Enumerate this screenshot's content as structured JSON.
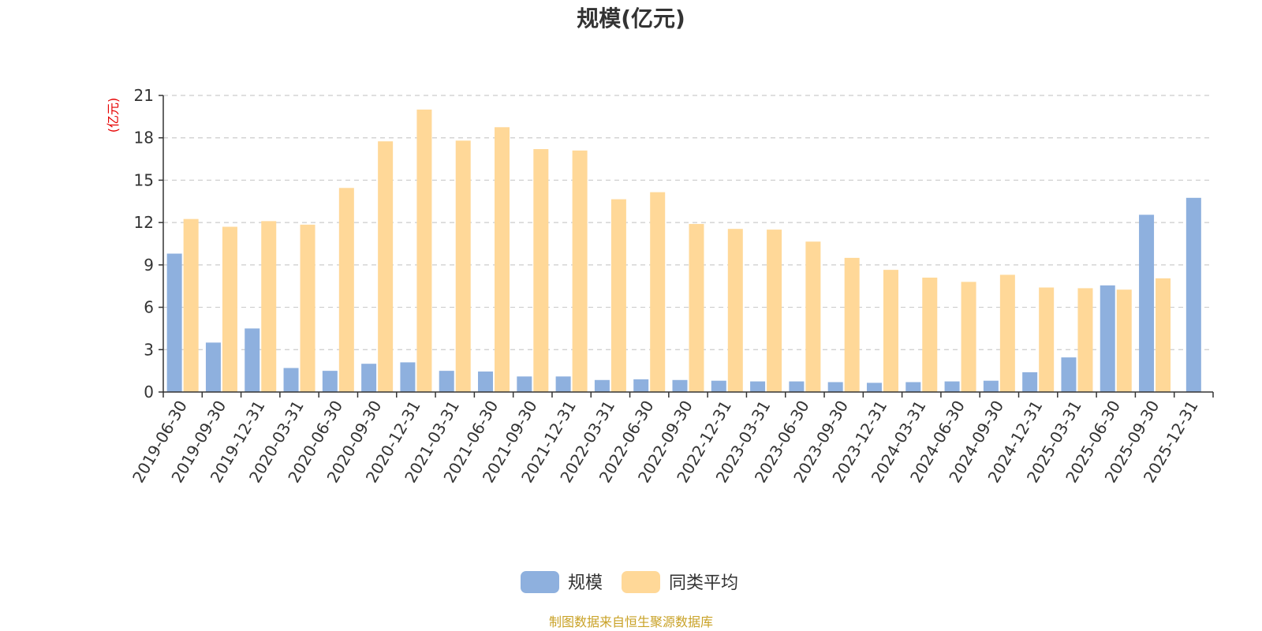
{
  "chart_data": {
    "type": "bar",
    "title": "规模(亿元)",
    "ylabel": "(亿元)",
    "ylim": [
      0,
      21
    ],
    "yticks": [
      0,
      3,
      6,
      9,
      12,
      15,
      18,
      21
    ],
    "grid": true,
    "legend_position": "bottom",
    "categories": [
      "2019-06-30",
      "2019-09-30",
      "2019-12-31",
      "2020-03-31",
      "2020-06-30",
      "2020-09-30",
      "2020-12-31",
      "2021-03-31",
      "2021-06-30",
      "2021-09-30",
      "2021-12-31",
      "2022-03-31",
      "2022-06-30",
      "2022-09-30",
      "2022-12-31",
      "2023-03-31",
      "2023-06-30",
      "2023-09-30",
      "2023-12-31",
      "2024-03-31",
      "2024-06-30",
      "2024-09-30",
      "2024-12-31",
      "2025-03-31",
      "2025-06-30",
      "2025-09-30",
      "2025-12-31"
    ],
    "series": [
      {
        "name": "规模",
        "color": "#8eb0de",
        "values": [
          9.8,
          3.5,
          4.5,
          1.7,
          1.5,
          2.0,
          2.1,
          1.5,
          1.45,
          1.1,
          1.1,
          0.85,
          0.9,
          0.85,
          0.8,
          0.75,
          0.75,
          0.7,
          0.65,
          0.7,
          0.75,
          0.8,
          1.4,
          2.45,
          7.55,
          12.55,
          13.75
        ]
      },
      {
        "name": "同类平均",
        "color": "#ffd898",
        "values": [
          12.25,
          11.7,
          12.1,
          11.85,
          14.45,
          17.75,
          20.0,
          17.8,
          18.75,
          17.2,
          17.1,
          13.65,
          14.15,
          11.9,
          11.55,
          11.5,
          10.65,
          9.5,
          8.65,
          8.1,
          7.8,
          8.3,
          7.4,
          7.35,
          7.25,
          8.05,
          null
        ]
      }
    ],
    "source": "制图数据来自恒生聚源数据库"
  }
}
